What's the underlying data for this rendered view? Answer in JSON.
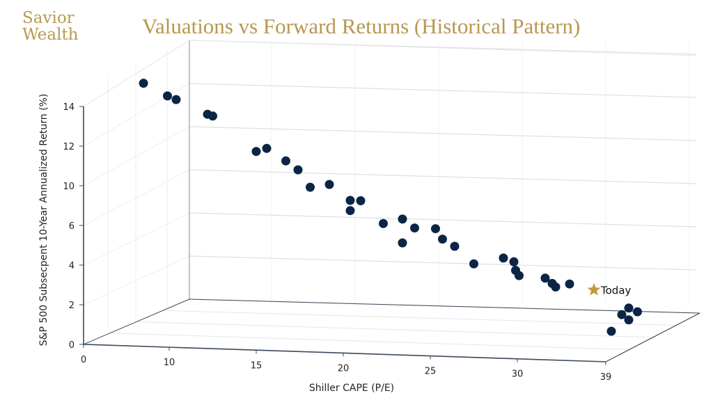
{
  "brand": {
    "line1": "Savior",
    "line2": "Wealth"
  },
  "chart_data": {
    "type": "scatter",
    "title": "Valuations vs Forward Returns (Historical Pattern)",
    "xlabel": "Shiller CAPE (P/E)",
    "ylabel": "S&P 500 Subsecpent 10-Year Annualized Return (%)",
    "x_tick_labels": [
      "0",
      "10",
      "15",
      "20",
      "25",
      "30",
      "39"
    ],
    "y_tick_labels": [
      "0",
      "2",
      "4",
      "6",
      "10",
      "12",
      "14"
    ],
    "grid": true,
    "projection": "3d",
    "colors": {
      "points": "#0b2545",
      "today": "#c29a3c",
      "title": "#b8984f"
    },
    "points": [
      {
        "x": 7.0,
        "y": 15.5
      },
      {
        "x": 9.8,
        "y": 14.8
      },
      {
        "x": 10.4,
        "y": 14.6
      },
      {
        "x": 12.2,
        "y": 13.8
      },
      {
        "x": 12.5,
        "y": 13.7
      },
      {
        "x": 15.0,
        "y": 11.7
      },
      {
        "x": 15.6,
        "y": 11.9
      },
      {
        "x": 16.7,
        "y": 11.2
      },
      {
        "x": 17.4,
        "y": 10.7
      },
      {
        "x": 18.1,
        "y": 9.7
      },
      {
        "x": 19.2,
        "y": 9.9
      },
      {
        "x": 20.4,
        "y": 9.0
      },
      {
        "x": 21.0,
        "y": 9.0
      },
      {
        "x": 20.4,
        "y": 8.4
      },
      {
        "x": 22.3,
        "y": 7.7
      },
      {
        "x": 23.4,
        "y": 8.0
      },
      {
        "x": 24.1,
        "y": 7.5
      },
      {
        "x": 23.4,
        "y": 6.6
      },
      {
        "x": 25.3,
        "y": 7.5
      },
      {
        "x": 25.7,
        "y": 6.9
      },
      {
        "x": 26.4,
        "y": 6.5
      },
      {
        "x": 27.5,
        "y": 5.5
      },
      {
        "x": 29.2,
        "y": 5.9
      },
      {
        "x": 29.8,
        "y": 5.7
      },
      {
        "x": 29.9,
        "y": 5.2
      },
      {
        "x": 30.1,
        "y": 4.9
      },
      {
        "x": 31.6,
        "y": 4.8
      },
      {
        "x": 32.0,
        "y": 4.5
      },
      {
        "x": 32.2,
        "y": 4.3
      },
      {
        "x": 33.0,
        "y": 4.5
      },
      {
        "x": 36.4,
        "y": 3.2
      },
      {
        "x": 36.9,
        "y": 3.0
      },
      {
        "x": 36.0,
        "y": 2.8
      },
      {
        "x": 36.4,
        "y": 2.5
      },
      {
        "x": 35.4,
        "y": 1.8
      }
    ],
    "today": {
      "label": "Today",
      "x": 34.4,
      "y": 4.2
    }
  }
}
